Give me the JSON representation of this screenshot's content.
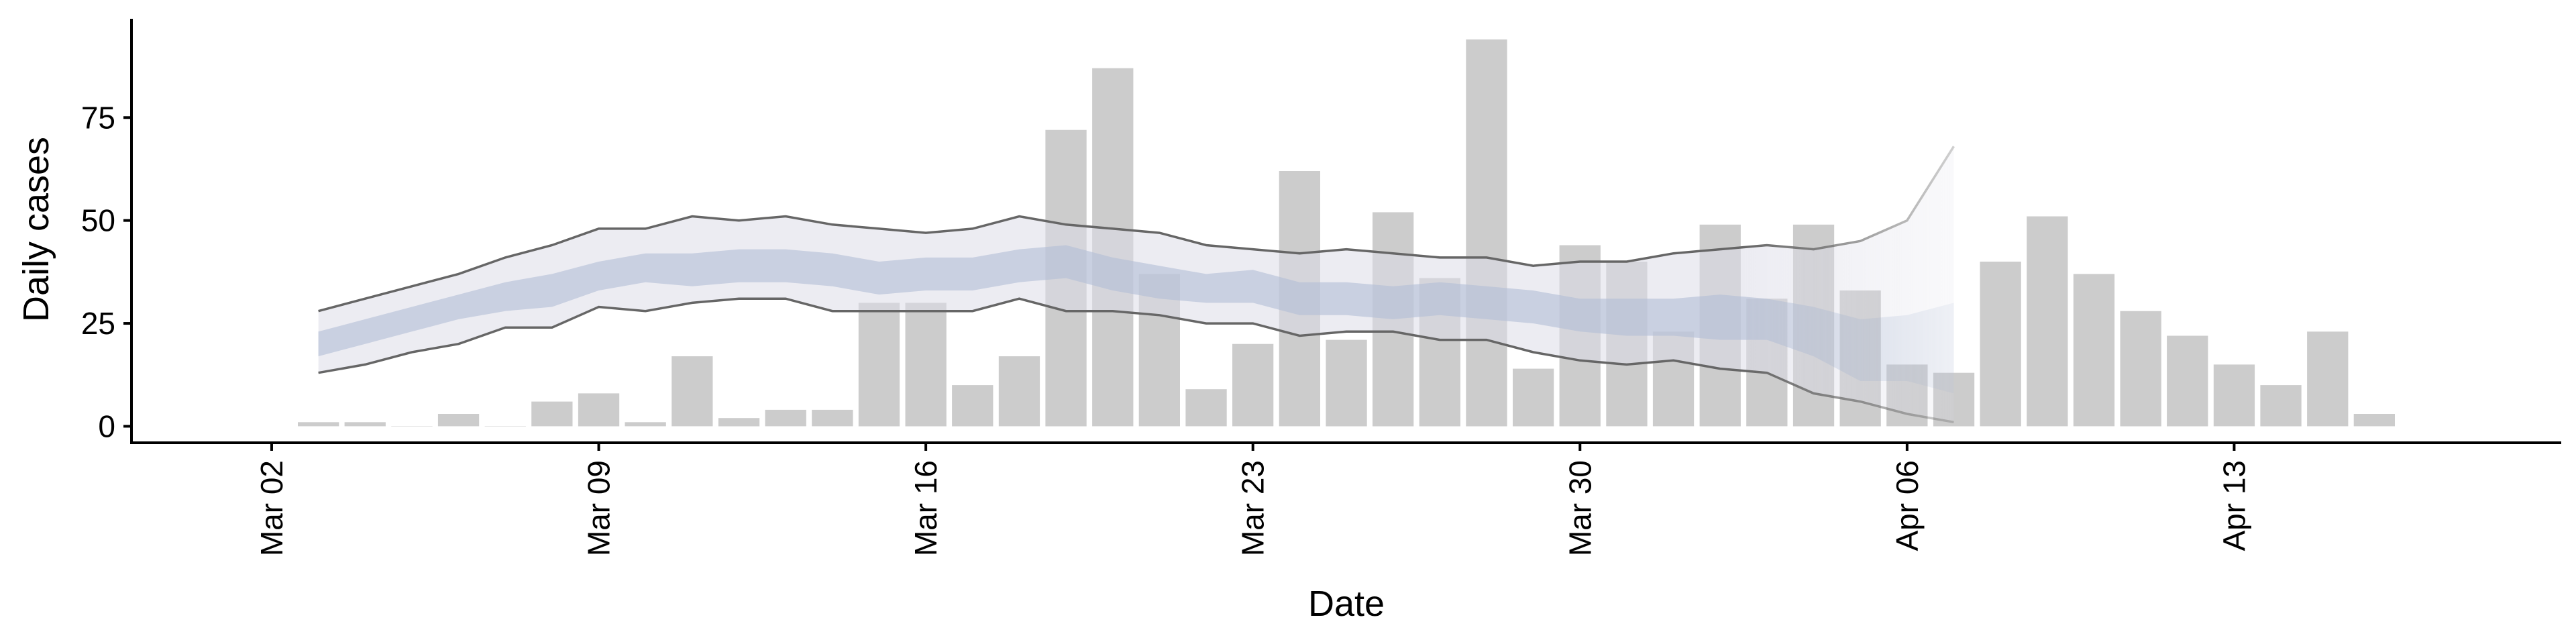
{
  "chart_data": {
    "type": "bar",
    "xlabel": "Date",
    "ylabel": "Daily cases",
    "x_ticks": [
      {
        "date": "2020-03-02",
        "label": "Mar 02"
      },
      {
        "date": "2020-03-09",
        "label": "Mar 09"
      },
      {
        "date": "2020-03-16",
        "label": "Mar 16"
      },
      {
        "date": "2020-03-23",
        "label": "Mar 23"
      },
      {
        "date": "2020-03-30",
        "label": "Mar 30"
      },
      {
        "date": "2020-04-06",
        "label": "Apr 06"
      },
      {
        "date": "2020-04-13",
        "label": "Apr 13"
      }
    ],
    "y_ticks": [
      0,
      25,
      50,
      75
    ],
    "xlim": [
      "2020-02-28",
      "2020-04-20"
    ],
    "ylim": [
      -4,
      99
    ],
    "grid": false,
    "colors": {
      "bars": "#cccccc",
      "band_outer": "#dcdde8",
      "band_inner": "#b3bed6",
      "bound_lines": "#666666"
    },
    "series": [
      {
        "type": "bar",
        "x": [
          "2020-03-03",
          "2020-03-04",
          "2020-03-05",
          "2020-03-06",
          "2020-03-07",
          "2020-03-08",
          "2020-03-09",
          "2020-03-10",
          "2020-03-11",
          "2020-03-12",
          "2020-03-13",
          "2020-03-14",
          "2020-03-15",
          "2020-03-16",
          "2020-03-17",
          "2020-03-18",
          "2020-03-19",
          "2020-03-20",
          "2020-03-21",
          "2020-03-22",
          "2020-03-23",
          "2020-03-24",
          "2020-03-25",
          "2020-03-26",
          "2020-03-27",
          "2020-03-28",
          "2020-03-29",
          "2020-03-30",
          "2020-03-31",
          "2020-04-01",
          "2020-04-02",
          "2020-04-03",
          "2020-04-04",
          "2020-04-05",
          "2020-04-06",
          "2020-04-07",
          "2020-04-08",
          "2020-04-09",
          "2020-04-10",
          "2020-04-11",
          "2020-04-12",
          "2020-04-13",
          "2020-04-14",
          "2020-04-15",
          "2020-04-16"
        ],
        "values": [
          1,
          1,
          0,
          3,
          0,
          6,
          8,
          1,
          17,
          2,
          4,
          4,
          30,
          30,
          10,
          17,
          72,
          87,
          37,
          9,
          20,
          62,
          21,
          52,
          36,
          94,
          14,
          44,
          40,
          23,
          49,
          31,
          49,
          33,
          15,
          13,
          40,
          51,
          37,
          28,
          22,
          15,
          10,
          23,
          3
        ]
      },
      {
        "type": "band",
        "x": [
          "2020-03-03",
          "2020-03-04",
          "2020-03-05",
          "2020-03-06",
          "2020-03-07",
          "2020-03-08",
          "2020-03-09",
          "2020-03-10",
          "2020-03-11",
          "2020-03-12",
          "2020-03-13",
          "2020-03-14",
          "2020-03-15",
          "2020-03-16",
          "2020-03-17",
          "2020-03-18",
          "2020-03-19",
          "2020-03-20",
          "2020-03-21",
          "2020-03-22",
          "2020-03-23",
          "2020-03-24",
          "2020-03-25",
          "2020-03-26",
          "2020-03-27",
          "2020-03-28",
          "2020-03-29",
          "2020-03-30",
          "2020-03-31",
          "2020-04-01",
          "2020-04-02",
          "2020-04-03",
          "2020-04-04",
          "2020-04-05",
          "2020-04-06",
          "2020-04-07"
        ],
        "upper": [
          28,
          31,
          34,
          37,
          41,
          44,
          48,
          48,
          51,
          50,
          51,
          49,
          48,
          47,
          48,
          51,
          49,
          48,
          47,
          44,
          43,
          42,
          43,
          42,
          41,
          41,
          39,
          40,
          40,
          42,
          43,
          44,
          43,
          45,
          50,
          68
        ],
        "lower": [
          13,
          15,
          18,
          20,
          24,
          24,
          29,
          28,
          30,
          31,
          31,
          28,
          28,
          28,
          28,
          31,
          28,
          28,
          27,
          25,
          25,
          22,
          23,
          23,
          21,
          21,
          18,
          16,
          15,
          16,
          14,
          13,
          8,
          6,
          3,
          1
        ]
      },
      {
        "type": "band",
        "x": [
          "2020-03-03",
          "2020-03-04",
          "2020-03-05",
          "2020-03-06",
          "2020-03-07",
          "2020-03-08",
          "2020-03-09",
          "2020-03-10",
          "2020-03-11",
          "2020-03-12",
          "2020-03-13",
          "2020-03-14",
          "2020-03-15",
          "2020-03-16",
          "2020-03-17",
          "2020-03-18",
          "2020-03-19",
          "2020-03-20",
          "2020-03-21",
          "2020-03-22",
          "2020-03-23",
          "2020-03-24",
          "2020-03-25",
          "2020-03-26",
          "2020-03-27",
          "2020-03-28",
          "2020-03-29",
          "2020-03-30",
          "2020-03-31",
          "2020-04-01",
          "2020-04-02",
          "2020-04-03",
          "2020-04-04",
          "2020-04-05",
          "2020-04-06",
          "2020-04-07"
        ],
        "upper": [
          23,
          26,
          29,
          32,
          35,
          37,
          40,
          42,
          42,
          43,
          43,
          42,
          40,
          41,
          41,
          43,
          44,
          41,
          39,
          37,
          38,
          35,
          35,
          34,
          35,
          34,
          33,
          31,
          31,
          31,
          32,
          31,
          29,
          26,
          27,
          30
        ],
        "lower": [
          17,
          20,
          23,
          26,
          28,
          29,
          33,
          35,
          34,
          35,
          35,
          34,
          32,
          33,
          33,
          35,
          36,
          33,
          31,
          30,
          30,
          27,
          27,
          26,
          27,
          26,
          25,
          23,
          22,
          22,
          21,
          21,
          17,
          11,
          11,
          8
        ]
      }
    ]
  }
}
